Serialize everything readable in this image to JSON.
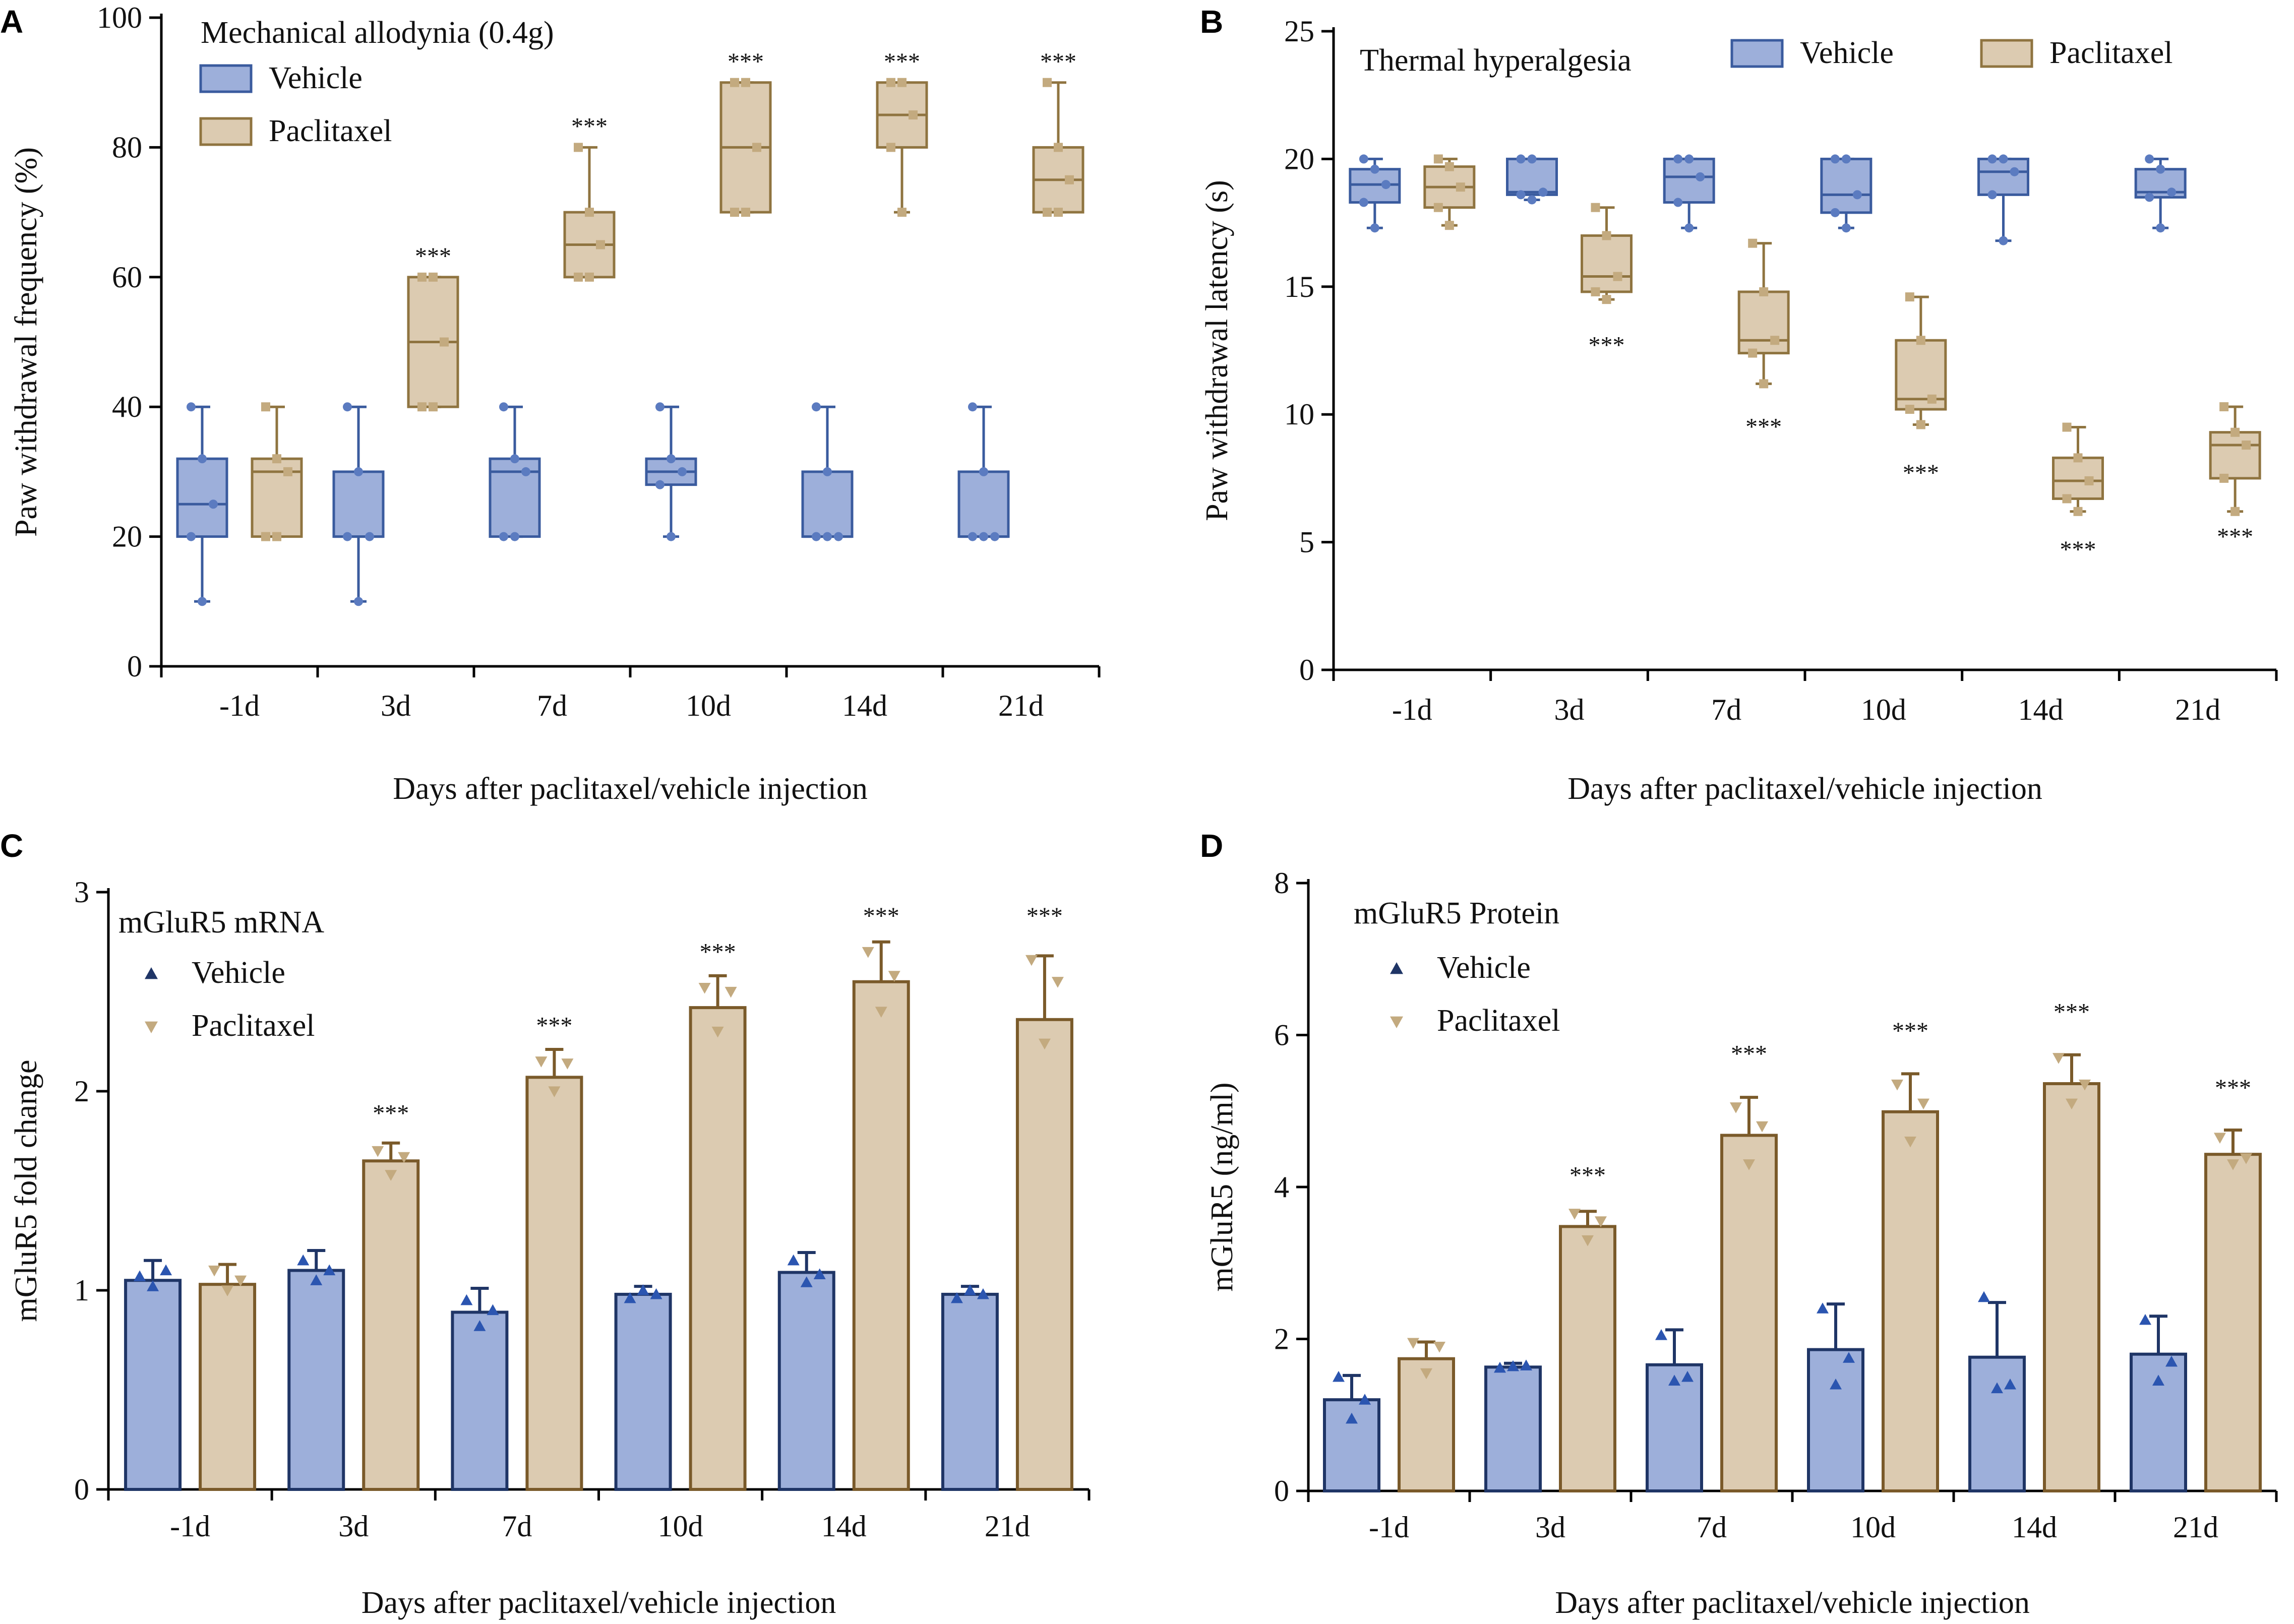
{
  "figure": {
    "background": "#ffffff"
  },
  "colors": {
    "vehicle_fill": "#9dafda",
    "vehicle_stroke": "#3a5b9e",
    "vehicle_dot": "#5b7bc0",
    "paclitaxel_fill": "#dccbb1",
    "paclitaxel_stroke": "#8f7440",
    "paclitaxel_dot": "#c3aa7f",
    "bar_vehicle_stroke": "#1f3566",
    "bar_paclitaxel_stroke": "#7a5a2a"
  },
  "chart_data": [
    {
      "id": "A",
      "panel_letter": "A",
      "type": "box",
      "title": "Mechanical allodynia (0.4g)",
      "xlabel": "Days after paclitaxel/vehicle injection",
      "ylabel": "Paw withdrawal frequency (%)",
      "ylim": [
        0,
        100
      ],
      "yticks": [
        0,
        20,
        40,
        60,
        80,
        100
      ],
      "categories": [
        "-1d",
        "3d",
        "7d",
        "10d",
        "14d",
        "21d"
      ],
      "legend": [
        "Vehicle",
        "Paclitaxel"
      ],
      "series": [
        {
          "name": "Vehicle",
          "boxes": [
            {
              "min": 10,
              "q1": 20,
              "median": 25,
              "q3": 32,
              "max": 40
            },
            {
              "min": 10,
              "q1": 20,
              "median": 20,
              "q3": 30,
              "max": 40
            },
            {
              "min": 20,
              "q1": 20,
              "median": 30,
              "q3": 32,
              "max": 40
            },
            {
              "min": 20,
              "q1": 28,
              "median": 30,
              "q3": 32,
              "max": 40
            },
            {
              "min": 20,
              "q1": 20,
              "median": 20,
              "q3": 30,
              "max": 40
            },
            {
              "min": 20,
              "q1": 20,
              "median": 20,
              "q3": 30,
              "max": 40
            }
          ]
        },
        {
          "name": "Paclitaxel",
          "boxes": [
            {
              "min": 20,
              "q1": 20,
              "median": 30,
              "q3": 32,
              "max": 40
            },
            {
              "min": 40,
              "q1": 40,
              "median": 50,
              "q3": 60,
              "max": 60
            },
            {
              "min": 60,
              "q1": 60,
              "median": 65,
              "q3": 70,
              "max": 80
            },
            {
              "min": 70,
              "q1": 70,
              "median": 80,
              "q3": 90,
              "max": 90
            },
            {
              "min": 70,
              "q1": 80,
              "median": 85,
              "q3": 90,
              "max": 90
            },
            {
              "min": 70,
              "q1": 70,
              "median": 75,
              "q3": 80,
              "max": 90
            }
          ]
        }
      ],
      "annotations": [
        {
          "category": "3d",
          "text": "***",
          "y": 62
        },
        {
          "category": "7d",
          "text": "***",
          "y": 82
        },
        {
          "category": "10d",
          "text": "***",
          "y": 92
        },
        {
          "category": "14d",
          "text": "***",
          "y": 92
        },
        {
          "category": "21d",
          "text": "***",
          "y": 92
        }
      ]
    },
    {
      "id": "B",
      "panel_letter": "B",
      "type": "box",
      "title": "Thermal hyperalgesia",
      "xlabel": "Days after paclitaxel/vehicle injection",
      "ylabel": "Paw withdrawal latency (s)",
      "ylim": [
        0,
        25
      ],
      "yticks": [
        0,
        5,
        10,
        15,
        20,
        25
      ],
      "categories": [
        "-1d",
        "3d",
        "7d",
        "10d",
        "14d",
        "21d"
      ],
      "legend": [
        "Vehicle",
        "Paclitaxel"
      ],
      "series": [
        {
          "name": "Vehicle",
          "boxes": [
            {
              "min": 17.3,
              "q1": 18.3,
              "median": 19.0,
              "q3": 19.6,
              "max": 20.0
            },
            {
              "min": 18.4,
              "q1": 18.6,
              "median": 18.7,
              "q3": 20.0,
              "max": 20.0
            },
            {
              "min": 17.3,
              "q1": 18.3,
              "median": 19.3,
              "q3": 20.0,
              "max": 20.0
            },
            {
              "min": 17.3,
              "q1": 17.9,
              "median": 18.6,
              "q3": 20.0,
              "max": 20.0
            },
            {
              "min": 16.8,
              "q1": 18.6,
              "median": 19.5,
              "q3": 20.0,
              "max": 20.0
            },
            {
              "min": 17.3,
              "q1": 18.5,
              "median": 18.7,
              "q3": 19.6,
              "max": 20.0
            }
          ]
        },
        {
          "name": "Paclitaxel",
          "boxes": [
            {
              "min": 17.4,
              "q1": 18.1,
              "median": 18.9,
              "q3": 19.7,
              "max": 20.0
            },
            {
              "min": 14.5,
              "q1": 14.8,
              "median": 15.4,
              "q3": 17.0,
              "max": 18.1
            },
            {
              "min": 11.2,
              "q1": 12.4,
              "median": 12.9,
              "q3": 14.8,
              "max": 16.7
            },
            {
              "min": 9.6,
              "q1": 10.2,
              "median": 10.6,
              "q3": 12.9,
              "max": 14.6
            },
            {
              "min": 6.2,
              "q1": 6.7,
              "median": 7.4,
              "q3": 8.3,
              "max": 9.5
            },
            {
              "min": 6.2,
              "q1": 7.5,
              "median": 8.8,
              "q3": 9.3,
              "max": 10.3
            }
          ]
        }
      ],
      "annotations": [
        {
          "category": "3d",
          "text": "***",
          "y": 12.4
        },
        {
          "category": "7d",
          "text": "***",
          "y": 9.2
        },
        {
          "category": "10d",
          "text": "***",
          "y": 7.4
        },
        {
          "category": "14d",
          "text": "***",
          "y": 4.4
        },
        {
          "category": "21d",
          "text": "***",
          "y": 4.9
        }
      ]
    },
    {
      "id": "C",
      "panel_letter": "C",
      "type": "bar",
      "title": "mGluR5 mRNA",
      "xlabel": "Days after paclitaxel/vehicle injection",
      "ylabel": "mGluR5 fold change",
      "ylim": [
        0,
        3
      ],
      "yticks": [
        0,
        1,
        2,
        3
      ],
      "categories": [
        "-1d",
        "3d",
        "7d",
        "10d",
        "14d",
        "21d"
      ],
      "legend": [
        "Vehicle",
        "Paclitaxel"
      ],
      "series": [
        {
          "name": "Vehicle",
          "values": [
            1.05,
            1.1,
            0.89,
            0.98,
            1.09,
            0.98
          ],
          "errors": [
            0.1,
            0.1,
            0.12,
            0.04,
            0.1,
            0.04
          ],
          "points": [
            [
              1.07,
              1.02,
              1.1
            ],
            [
              1.15,
              1.05,
              1.1
            ],
            [
              0.95,
              0.82,
              0.9
            ],
            [
              0.96,
              1.0,
              0.98
            ],
            [
              1.15,
              1.04,
              1.08
            ],
            [
              0.96,
              1.0,
              0.98
            ]
          ]
        },
        {
          "name": "Paclitaxel",
          "values": [
            1.03,
            1.65,
            2.07,
            2.42,
            2.55,
            2.36
          ],
          "errors": [
            0.1,
            0.09,
            0.14,
            0.16,
            0.2,
            0.32
          ],
          "points": [
            [
              1.1,
              1.0,
              1.05
            ],
            [
              1.7,
              1.58,
              1.67
            ],
            [
              2.15,
              2.0,
              2.14
            ],
            [
              2.52,
              2.3,
              2.5
            ],
            [
              2.7,
              2.4,
              2.58
            ],
            [
              2.66,
              2.24,
              2.55
            ]
          ]
        }
      ],
      "annotations": [
        {
          "category": "3d",
          "text": "***",
          "y": 1.85
        },
        {
          "category": "7d",
          "text": "***",
          "y": 2.29
        },
        {
          "category": "10d",
          "text": "***",
          "y": 2.66
        },
        {
          "category": "14d",
          "text": "***",
          "y": 2.84
        },
        {
          "category": "21d",
          "text": "***",
          "y": 2.84
        }
      ]
    },
    {
      "id": "D",
      "panel_letter": "D",
      "type": "bar",
      "title": "mGluR5 Protein",
      "xlabel": "Days after paclitaxel/vehicle injection",
      "ylabel": "mGluR5 (ng/ml)",
      "ylim": [
        0,
        8
      ],
      "yticks": [
        0,
        2,
        4,
        6,
        8
      ],
      "categories": [
        "-1d",
        "3d",
        "7d",
        "10d",
        "14d",
        "21d"
      ],
      "legend": [
        "Vehicle",
        "Paclitaxel"
      ],
      "series": [
        {
          "name": "Vehicle",
          "values": [
            1.2,
            1.63,
            1.66,
            1.86,
            1.76,
            1.8
          ],
          "errors": [
            0.32,
            0.05,
            0.46,
            0.6,
            0.72,
            0.5
          ],
          "points": [
            [
              1.5,
              0.95,
              1.2
            ],
            [
              1.62,
              1.64,
              1.65
            ],
            [
              2.05,
              1.45,
              1.5
            ],
            [
              2.4,
              1.4,
              1.75
            ],
            [
              2.55,
              1.35,
              1.4
            ],
            [
              2.25,
              1.45,
              1.7
            ]
          ]
        },
        {
          "name": "Paclitaxel",
          "values": [
            1.74,
            3.48,
            4.68,
            4.99,
            5.36,
            4.43
          ],
          "errors": [
            0.22,
            0.2,
            0.5,
            0.5,
            0.38,
            0.32
          ],
          "points": [
            [
              1.95,
              1.55,
              1.9
            ],
            [
              3.65,
              3.3,
              3.55
            ],
            [
              5.05,
              4.3,
              4.8
            ],
            [
              5.35,
              4.6,
              5.1
            ],
            [
              5.7,
              5.1,
              5.35
            ],
            [
              4.65,
              4.3,
              4.38
            ]
          ]
        }
      ],
      "annotations": [
        {
          "category": "3d",
          "text": "***",
          "y": 4.05
        },
        {
          "category": "7d",
          "text": "***",
          "y": 5.65
        },
        {
          "category": "10d",
          "text": "***",
          "y": 5.95
        },
        {
          "category": "14d",
          "text": "***",
          "y": 6.2
        },
        {
          "category": "21d",
          "text": "***",
          "y": 5.2
        }
      ]
    }
  ]
}
